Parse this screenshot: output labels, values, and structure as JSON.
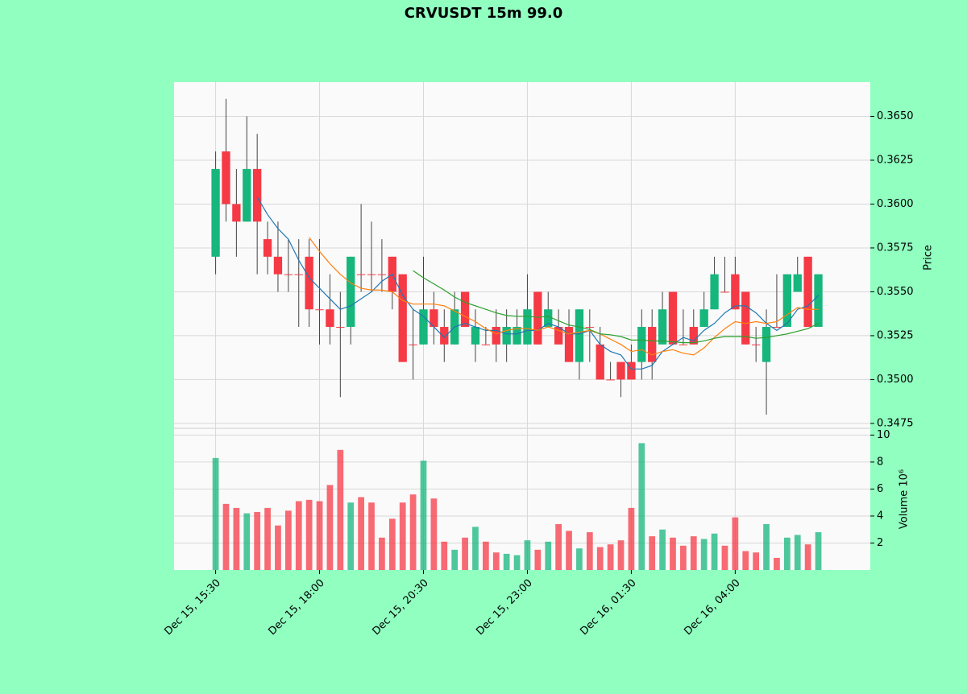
{
  "chart_data": {
    "type": "candlestick",
    "title": "CRVUSDT 15m 99.0",
    "ylabel": "Price",
    "volume_label": "Volume  10⁶",
    "categories": [
      "Dec 15, 15:30",
      null,
      null,
      null,
      null,
      null,
      null,
      null,
      null,
      null,
      "Dec 15, 18:00",
      null,
      null,
      null,
      null,
      null,
      null,
      null,
      null,
      null,
      "Dec 15, 20:30",
      null,
      null,
      null,
      null,
      null,
      null,
      null,
      null,
      null,
      "Dec 15, 23:00",
      null,
      null,
      null,
      null,
      null,
      null,
      null,
      null,
      null,
      "Dec 16, 01:30",
      null,
      null,
      null,
      null,
      null,
      null,
      null,
      null,
      null,
      "Dec 16, 04:00",
      null,
      null,
      null,
      null,
      null,
      null,
      null,
      null
    ],
    "xlim": [
      -4,
      63
    ],
    "open": [
      0.357,
      0.363,
      0.36,
      0.359,
      0.362,
      0.358,
      0.357,
      0.356,
      0.356,
      0.357,
      0.354,
      0.354,
      0.353,
      0.353,
      0.356,
      0.356,
      0.356,
      0.357,
      0.356,
      0.352,
      0.352,
      0.354,
      0.353,
      0.352,
      0.355,
      0.352,
      0.352,
      0.353,
      0.352,
      0.352,
      0.352,
      0.355,
      0.353,
      0.353,
      0.353,
      0.351,
      0.353,
      0.352,
      0.35,
      0.351,
      0.351,
      0.351,
      0.353,
      0.352,
      0.355,
      0.352,
      0.353,
      0.353,
      0.354,
      0.355,
      0.356,
      0.355,
      0.352,
      0.351,
      0.353,
      0.353,
      0.355,
      0.357,
      0.353
    ],
    "high": [
      0.363,
      0.366,
      0.362,
      0.365,
      0.364,
      0.359,
      0.359,
      0.358,
      0.358,
      0.358,
      0.358,
      0.356,
      0.355,
      0.357,
      0.36,
      0.359,
      0.358,
      0.357,
      0.356,
      0.354,
      0.357,
      0.355,
      0.354,
      0.355,
      0.355,
      0.354,
      0.353,
      0.354,
      0.354,
      0.354,
      0.356,
      0.355,
      0.355,
      0.354,
      0.354,
      0.354,
      0.354,
      0.353,
      0.351,
      0.351,
      0.352,
      0.354,
      0.354,
      0.355,
      0.355,
      0.354,
      0.354,
      0.355,
      0.357,
      0.357,
      0.357,
      0.355,
      0.353,
      0.354,
      0.356,
      0.356,
      0.357,
      0.357,
      0.356
    ],
    "low": [
      0.356,
      0.359,
      0.357,
      0.359,
      0.356,
      0.356,
      0.355,
      0.355,
      0.353,
      0.353,
      0.352,
      0.352,
      0.349,
      0.352,
      0.355,
      0.355,
      0.355,
      0.354,
      0.351,
      0.35,
      0.352,
      0.352,
      0.351,
      0.352,
      0.353,
      0.351,
      0.352,
      0.351,
      0.351,
      0.352,
      0.352,
      0.352,
      0.353,
      0.352,
      0.351,
      0.35,
      0.351,
      0.35,
      0.35,
      0.349,
      0.35,
      0.35,
      0.35,
      0.352,
      0.352,
      0.352,
      0.352,
      0.353,
      0.354,
      0.355,
      0.354,
      0.352,
      0.351,
      0.348,
      0.353,
      0.353,
      0.355,
      0.353,
      0.353
    ],
    "close": [
      0.362,
      0.36,
      0.359,
      0.362,
      0.359,
      0.357,
      0.356,
      0.356,
      0.356,
      0.354,
      0.354,
      0.353,
      0.353,
      0.357,
      0.356,
      0.356,
      0.356,
      0.355,
      0.351,
      0.352,
      0.354,
      0.353,
      0.352,
      0.354,
      0.353,
      0.353,
      0.352,
      0.352,
      0.353,
      0.353,
      0.354,
      0.352,
      0.354,
      0.352,
      0.351,
      0.354,
      0.353,
      0.35,
      0.35,
      0.35,
      0.35,
      0.353,
      0.351,
      0.354,
      0.352,
      0.352,
      0.352,
      0.354,
      0.356,
      0.355,
      0.354,
      0.352,
      0.352,
      0.353,
      0.353,
      0.356,
      0.356,
      0.353,
      0.356
    ],
    "volume": [
      8.3,
      4.9,
      4.6,
      4.2,
      4.3,
      4.6,
      3.3,
      4.4,
      5.1,
      5.2,
      5.1,
      6.3,
      8.9,
      5.0,
      5.4,
      5.0,
      2.4,
      3.8,
      5.0,
      5.6,
      8.1,
      5.3,
      2.1,
      1.5,
      2.4,
      3.2,
      2.1,
      1.3,
      1.2,
      1.1,
      2.2,
      1.5,
      2.1,
      3.4,
      2.9,
      1.6,
      2.8,
      1.7,
      1.9,
      2.2,
      4.6,
      9.4,
      2.5,
      3.0,
      2.4,
      1.8,
      2.5,
      2.3,
      2.7,
      1.8,
      3.9,
      1.4,
      1.3,
      3.4,
      0.9,
      2.4,
      2.6,
      1.9,
      2.8
    ],
    "up_color": "#16b67c",
    "down_color": "#f53a45",
    "mav": [
      5,
      10,
      20
    ],
    "mav_colors": [
      "#1f77b4",
      "#ff7f0e",
      "#2ca02c"
    ],
    "ylim": [
      0.34722,
      0.36695
    ],
    "yticks": [
      {
        "value": 0.3475,
        "label": "0.3475"
      },
      {
        "value": 0.35,
        "label": "0.3500"
      },
      {
        "value": 0.3525,
        "label": "0.3525"
      },
      {
        "value": 0.355,
        "label": "0.3550"
      },
      {
        "value": 0.3575,
        "label": "0.3575"
      },
      {
        "value": 0.36,
        "label": "0.3600"
      },
      {
        "value": 0.3625,
        "label": "0.3625"
      },
      {
        "value": 0.365,
        "label": "0.3650"
      }
    ],
    "volume_ylim": [
      0,
      10.5
    ],
    "volume_yticks": [
      2,
      4,
      6,
      8,
      10
    ],
    "grid": true
  }
}
